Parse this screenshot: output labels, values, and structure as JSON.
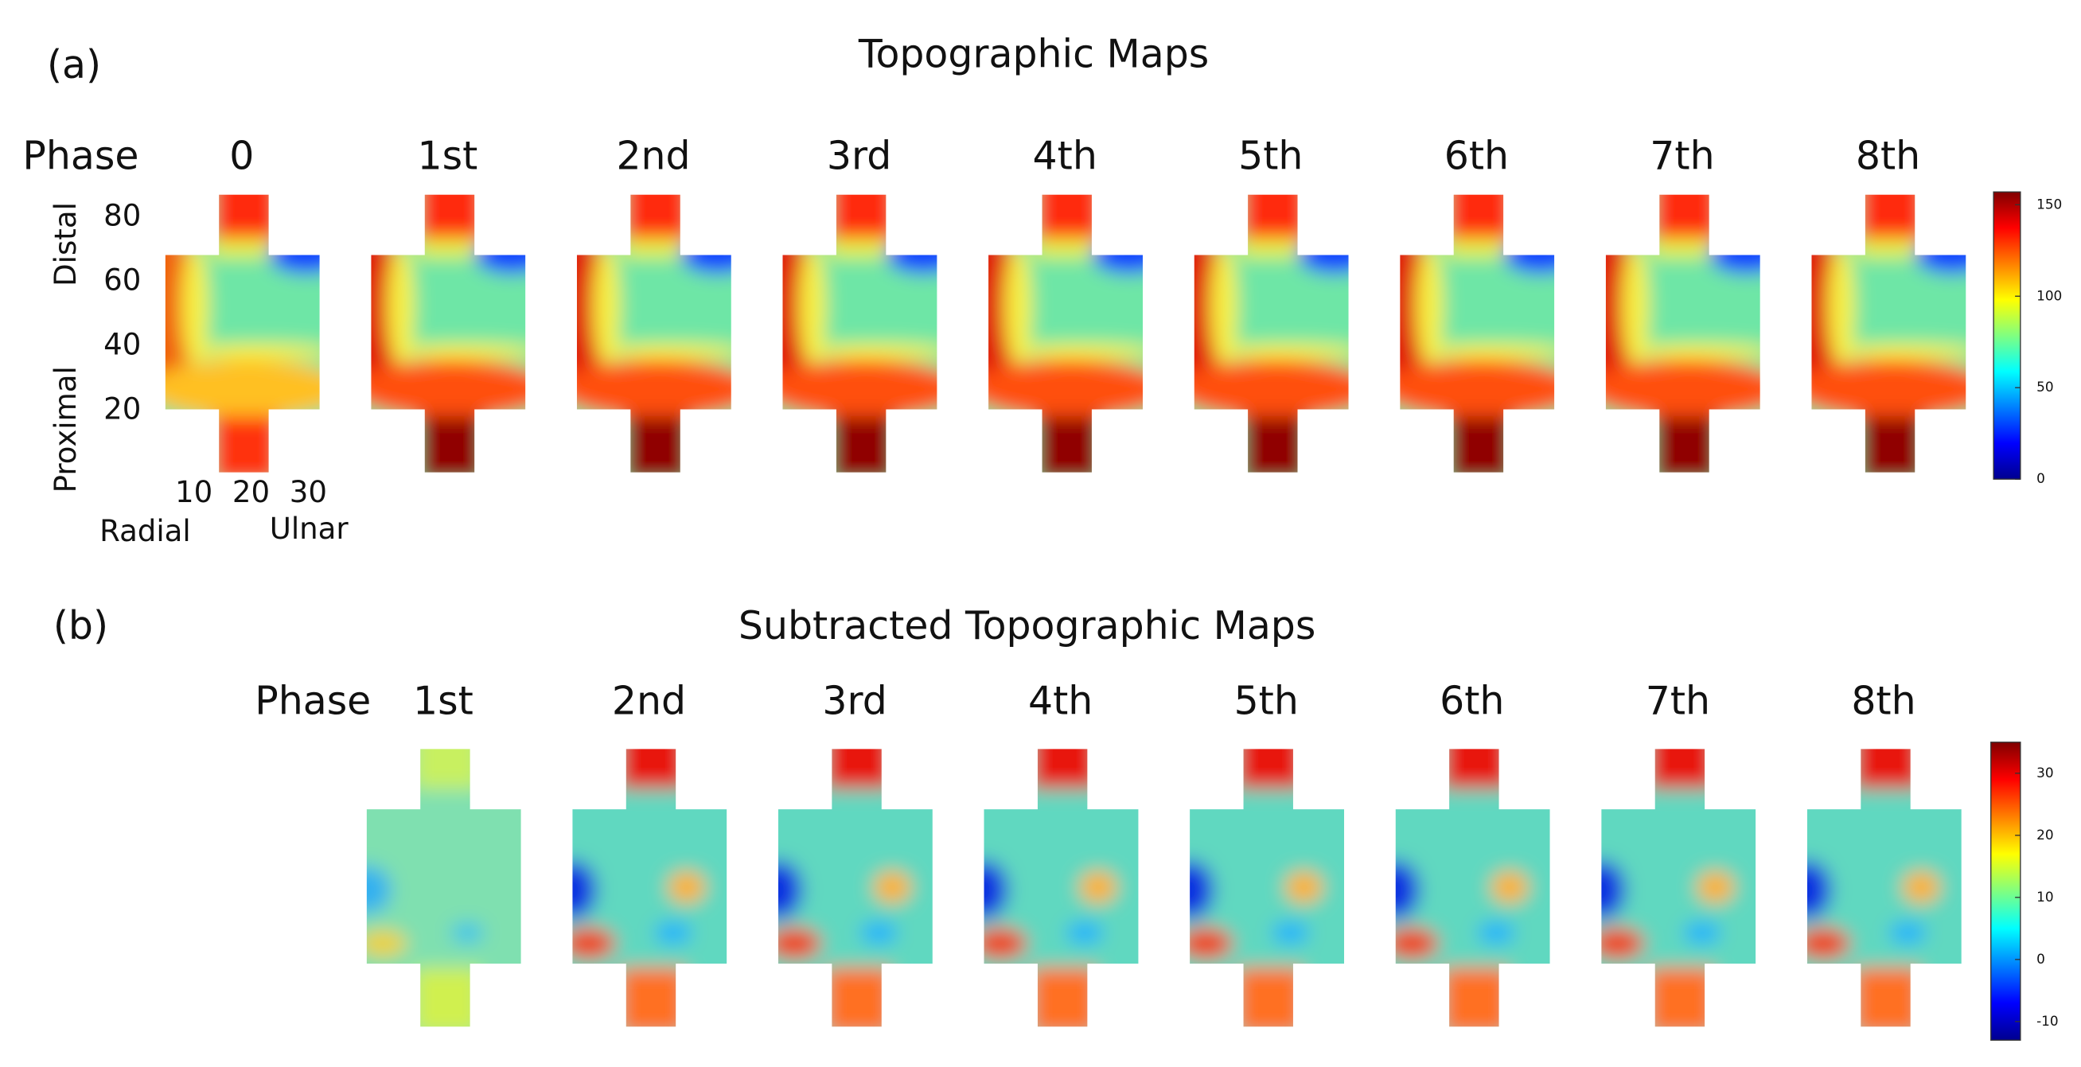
{
  "panel_a": {
    "label": "(a)",
    "title": "Topographic Maps",
    "phase_label": "Phase",
    "phases": [
      "0",
      "1st",
      "2nd",
      "3rd",
      "4th",
      "5th",
      "6th",
      "7th",
      "8th"
    ],
    "y_axis": {
      "labels": [
        "Distal",
        "Proximal"
      ],
      "ylim": [
        0,
        87
      ],
      "ticks": [
        20,
        40,
        60,
        80
      ]
    },
    "x_axis": {
      "labels": [
        "Radial",
        "Ulnar"
      ],
      "xlim": [
        5,
        32
      ],
      "ticks": [
        10,
        20,
        30
      ]
    },
    "colorbar": {
      "lim": [
        0,
        157
      ],
      "ticks": [
        0,
        50,
        100,
        150
      ]
    }
  },
  "panel_b": {
    "label": "(b)",
    "title": "Subtracted Topographic Maps",
    "phase_label": "Phase",
    "phases": [
      "1st",
      "2nd",
      "3rd",
      "4th",
      "5th",
      "6th",
      "7th",
      "8th"
    ],
    "colorbar": {
      "lim": [
        -13,
        35
      ],
      "ticks": [
        -10,
        0,
        10,
        20,
        30
      ]
    }
  }
}
